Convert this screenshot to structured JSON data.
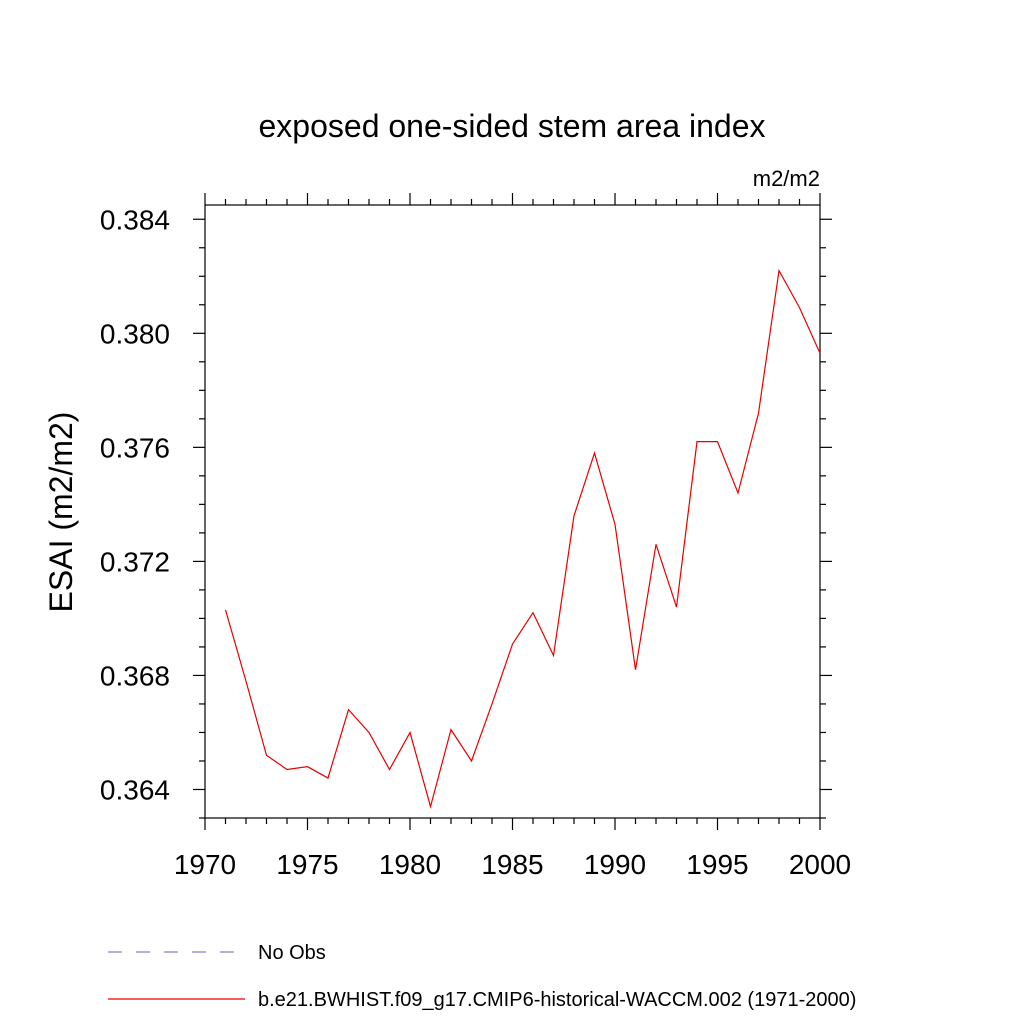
{
  "chart_data": {
    "type": "line",
    "title": "exposed one-sided stem area index",
    "units_label": "m2/m2",
    "ylabel": "ESAI  (m2/m2)",
    "xlabel": "",
    "xlim": [
      1970,
      2000
    ],
    "ylim": [
      0.363,
      0.3845
    ],
    "x_ticks": [
      {
        "value": 1970,
        "label": "1970"
      },
      {
        "value": 1975,
        "label": "1975"
      },
      {
        "value": 1980,
        "label": "1980"
      },
      {
        "value": 1985,
        "label": "1985"
      },
      {
        "value": 1990,
        "label": "1990"
      },
      {
        "value": 1995,
        "label": "1995"
      },
      {
        "value": 2000,
        "label": "2000"
      }
    ],
    "y_ticks": [
      {
        "value": 0.364,
        "label": "0.364"
      },
      {
        "value": 0.368,
        "label": "0.368"
      },
      {
        "value": 0.372,
        "label": "0.372"
      },
      {
        "value": 0.376,
        "label": "0.376"
      },
      {
        "value": 0.38,
        "label": "0.380"
      },
      {
        "value": 0.384,
        "label": "0.384"
      }
    ],
    "series": [
      {
        "name": "No Obs",
        "color": "#8080c0",
        "dash": true,
        "x": [],
        "values": []
      },
      {
        "name": "b.e21.BWHIST.f09_g17.CMIP6-historical-WACCM.002 (1971-2000)",
        "color": "#e60000",
        "dash": false,
        "x": [
          1971,
          1972,
          1973,
          1974,
          1975,
          1976,
          1977,
          1978,
          1979,
          1980,
          1981,
          1982,
          1983,
          1984,
          1985,
          1986,
          1987,
          1988,
          1989,
          1990,
          1991,
          1992,
          1993,
          1994,
          1995,
          1996,
          1997,
          1998,
          1999,
          2000
        ],
        "values": [
          0.3703,
          0.3678,
          0.3652,
          0.3647,
          0.3648,
          0.3644,
          0.3668,
          0.366,
          0.3647,
          0.366,
          0.3634,
          0.3661,
          0.365,
          0.367,
          0.3691,
          0.3702,
          0.3687,
          0.3736,
          0.3758,
          0.3733,
          0.3682,
          0.3726,
          0.3704,
          0.3762,
          0.3762,
          0.3744,
          0.3772,
          0.3822,
          0.3809,
          0.3793
        ]
      }
    ],
    "legend_position": "bottom"
  }
}
